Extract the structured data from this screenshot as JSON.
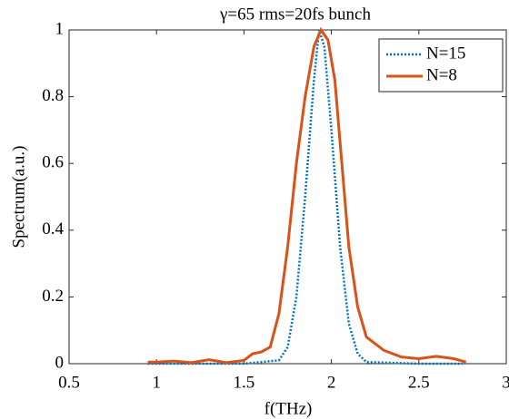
{
  "chart_data": {
    "type": "line",
    "title": "γ=65 rms=20fs bunch",
    "x_label": "f(THz)",
    "y_label": "Spectrum(a.u.)",
    "xlim": [
      0.5,
      3
    ],
    "ylim": [
      0,
      1
    ],
    "xticks": [
      0.5,
      1,
      1.5,
      2,
      2.5,
      3
    ],
    "yticks": [
      0,
      0.2,
      0.4,
      0.6,
      0.8,
      1
    ],
    "legend": "upper right",
    "series": [
      {
        "name": "N=15",
        "color": "#0072BD",
        "style": "dotted",
        "x": [
          0.95,
          1.2,
          1.5,
          1.7,
          1.75,
          1.8,
          1.85,
          1.9,
          1.93,
          1.96,
          2.0,
          2.05,
          2.1,
          2.15,
          2.2,
          2.5,
          2.75
        ],
        "values": [
          0,
          0,
          0,
          0.01,
          0.05,
          0.2,
          0.5,
          0.85,
          1.0,
          0.95,
          0.7,
          0.35,
          0.12,
          0.03,
          0.005,
          0,
          0
        ]
      },
      {
        "name": "N=8",
        "color": "#D95319",
        "style": "solid",
        "x": [
          0.95,
          1.0,
          1.1,
          1.2,
          1.3,
          1.4,
          1.5,
          1.55,
          1.6,
          1.65,
          1.7,
          1.75,
          1.8,
          1.85,
          1.9,
          1.94,
          1.98,
          2.02,
          2.06,
          2.1,
          2.15,
          2.2,
          2.3,
          2.4,
          2.5,
          2.6,
          2.7,
          2.77
        ],
        "values": [
          0.005,
          0.005,
          0.008,
          0.003,
          0.012,
          0.003,
          0.01,
          0.03,
          0.035,
          0.05,
          0.15,
          0.35,
          0.6,
          0.8,
          0.95,
          1.0,
          0.97,
          0.85,
          0.6,
          0.35,
          0.17,
          0.08,
          0.04,
          0.02,
          0.015,
          0.022,
          0.015,
          0.005
        ]
      }
    ]
  }
}
